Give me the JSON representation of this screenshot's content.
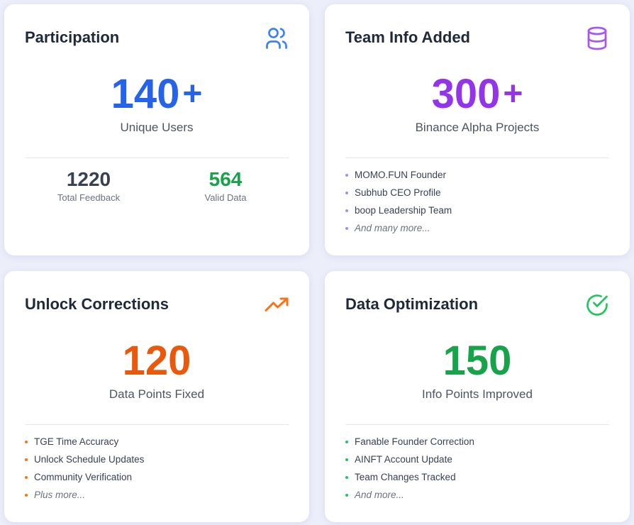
{
  "cards": [
    {
      "title": "Participation",
      "value": "140",
      "suffix": "+",
      "subtitle": "Unique Users",
      "stats": [
        {
          "value": "1220",
          "label": "Total Feedback"
        },
        {
          "value": "564",
          "label": "Valid Data"
        }
      ]
    },
    {
      "title": "Team Info Added",
      "value": "300",
      "suffix": "+",
      "subtitle": "Binance Alpha Projects",
      "items": [
        "MOMO.FUN Founder",
        "Subhub CEO Profile",
        "boop Leadership Team"
      ],
      "more": "And many more..."
    },
    {
      "title": "Unlock Corrections",
      "value": "120",
      "subtitle": "Data Points Fixed",
      "items": [
        "TGE Time Accuracy",
        "Unlock Schedule Updates",
        "Community Verification"
      ],
      "more": "Plus more..."
    },
    {
      "title": "Data Optimization",
      "value": "150",
      "subtitle": "Info Points Improved",
      "items": [
        "Fanable Founder Correction",
        "AINFT Account Update",
        "Team Changes Tracked"
      ],
      "more": "And more..."
    }
  ]
}
